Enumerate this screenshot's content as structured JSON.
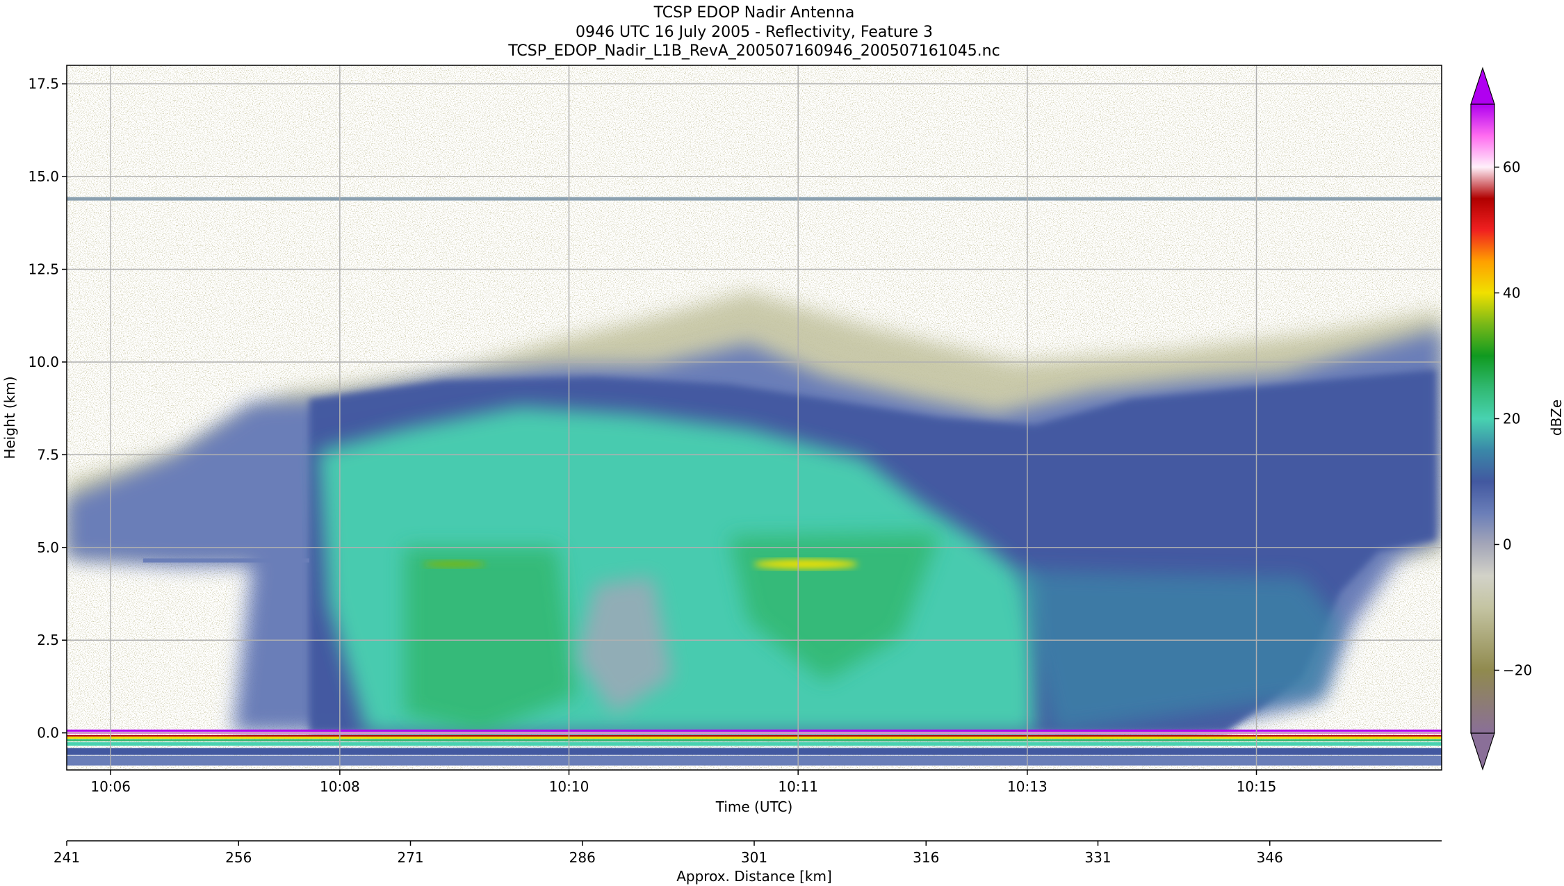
{
  "titles": [
    "TCSP EDOP Nadir Antenna",
    "0946 UTC 16 July 2005 - Reflectivity, Feature 3",
    "TCSP_EDOP_Nadir_L1B_RevA_200507160946_200507161045.nc"
  ],
  "chart_data": {
    "type": "heatmap",
    "title": "TCSP EDOP Nadir Antenna",
    "xlabel": "Time (UTC)",
    "ylabel": "Height (km)",
    "x_ticks": [
      "10:06",
      "10:08",
      "10:10",
      "10:11",
      "10:13",
      "10:15"
    ],
    "x_tick_seconds": [
      366,
      486,
      606,
      726,
      846,
      966
    ],
    "xlim_seconds": [
      343,
      1063
    ],
    "ylim": [
      -1.0,
      18.0
    ],
    "y_ticks": [
      0.0,
      2.5,
      5.0,
      7.5,
      10.0,
      12.5,
      15.0,
      17.5
    ],
    "y_tick_labels": [
      "0.0",
      "2.5",
      "5.0",
      "7.5",
      "10.0",
      "12.5",
      "15.0",
      "17.5"
    ],
    "secondary_xlabel": "Approx. Distance [km]",
    "secondary_x_ticks": [
      241,
      256,
      271,
      286,
      301,
      316,
      331,
      346
    ],
    "secondary_xlim": [
      241,
      361
    ],
    "colorbar": {
      "label": "dBZe",
      "ticks": [
        -20,
        0,
        20,
        40,
        60
      ],
      "tick_labels": [
        "−20",
        "0",
        "20",
        "40",
        "60"
      ],
      "range": [
        -30,
        70
      ],
      "extend": "both",
      "stops": [
        {
          "v": -30,
          "c": "#8a6f98"
        },
        {
          "v": -20,
          "c": "#908a4e"
        },
        {
          "v": -10,
          "c": "#c4c4a2"
        },
        {
          "v": -5,
          "c": "#d2d2c8"
        },
        {
          "v": 0,
          "c": "#a4a6b8"
        },
        {
          "v": 5,
          "c": "#6a7eb8"
        },
        {
          "v": 10,
          "c": "#4258a0"
        },
        {
          "v": 15,
          "c": "#3a88a8"
        },
        {
          "v": 20,
          "c": "#48d2b0"
        },
        {
          "v": 25,
          "c": "#30b870"
        },
        {
          "v": 30,
          "c": "#109a20"
        },
        {
          "v": 35,
          "c": "#78b818"
        },
        {
          "v": 40,
          "c": "#f0e000"
        },
        {
          "v": 45,
          "c": "#ffa000"
        },
        {
          "v": 50,
          "c": "#f02020"
        },
        {
          "v": 55,
          "c": "#b00000"
        },
        {
          "v": 60,
          "c": "#fff0fa"
        },
        {
          "v": 65,
          "c": "#ff6cf0"
        },
        {
          "v": 70,
          "c": "#b000f0"
        }
      ]
    },
    "grid": true,
    "features": {
      "bright_band_height": 4.6,
      "tropopause_line_height": 14.4,
      "surface_height": 0.0
    }
  }
}
